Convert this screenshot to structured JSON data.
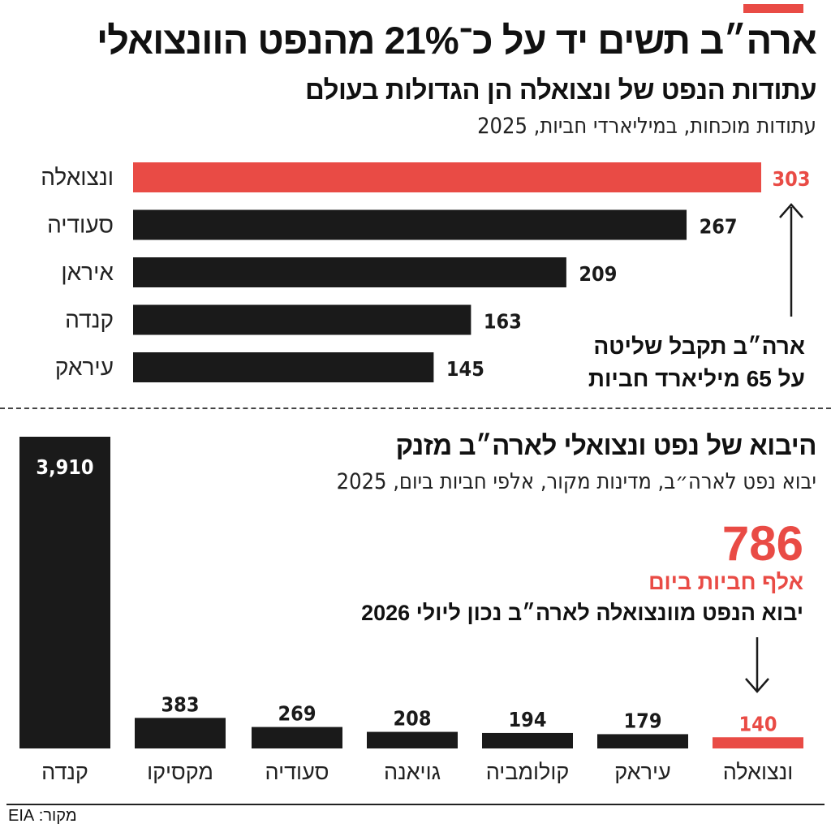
{
  "header": {
    "title": "ארה״ב תשים יד על כ־21% מהנפט הוונצואלי",
    "accent_color": "#e94b45"
  },
  "chart_data": [
    {
      "type": "bar",
      "orientation": "horizontal",
      "title": "עתודות הנפט של ונצואלה הן הגדולות בעולם",
      "subtitle": "עתודות מוכחות, במיליארדי חביות, 2025",
      "categories": [
        "ונצואלה",
        "סעודיה",
        "איראן",
        "קנדה",
        "עיראק"
      ],
      "values": [
        303,
        267,
        209,
        163,
        145
      ],
      "highlight": "ונצואלה",
      "colors": {
        "highlight": "#e94b45",
        "default": "#1a1a1a"
      },
      "annotation": {
        "line1": "ארה״ב תקבל שליטה",
        "line2": "על 65 מיליארד חביות"
      }
    },
    {
      "type": "bar",
      "orientation": "vertical",
      "title": "היבוא של נפט ונצואלי לארה״ב מזנק",
      "subtitle": "יבוא נפט לארה״ב, מדינות מקור, אלפי חביות ביום, 2025",
      "categories": [
        "ונצואלה",
        "עיראק",
        "קולומביה",
        "גויאנה",
        "סעודיה",
        "מקסיקו",
        "קנדה"
      ],
      "values": [
        140,
        179,
        194,
        208,
        269,
        383,
        3910
      ],
      "value_labels": [
        "140",
        "179",
        "194",
        "208",
        "269",
        "383",
        "3,910"
      ],
      "highlight": "ונצואלה",
      "colors": {
        "highlight": "#e94b45",
        "default": "#1a1a1a"
      },
      "annotation": {
        "number": "786",
        "unit": "אלף חביות ביום",
        "description": "יבוא הנפט מוונצואלה לארה״ב נכון ליולי 2026"
      }
    }
  ],
  "footer": {
    "source": "מקור: EIA"
  }
}
